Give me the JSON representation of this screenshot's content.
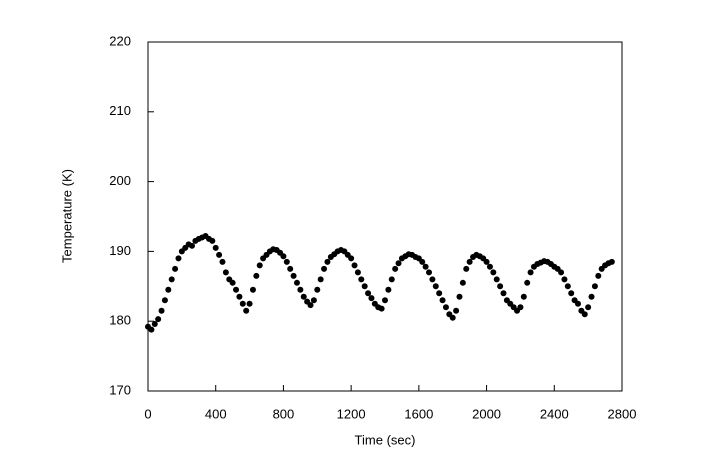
{
  "chart_data": {
    "type": "scatter",
    "x_label": "Time (sec)",
    "y_label": "Temperature (K)",
    "color": "#000000",
    "x": [
      0,
      20,
      40,
      60,
      80,
      100,
      120,
      140,
      160,
      180,
      200,
      220,
      240,
      260,
      280,
      300,
      320,
      340,
      360,
      380,
      400,
      420,
      440,
      460,
      480,
      500,
      520,
      540,
      560,
      580,
      600,
      620,
      640,
      660,
      680,
      700,
      720,
      740,
      760,
      780,
      800,
      820,
      840,
      860,
      880,
      900,
      920,
      940,
      960,
      980,
      1000,
      1020,
      1040,
      1060,
      1080,
      1100,
      1120,
      1140,
      1160,
      1180,
      1200,
      1220,
      1240,
      1260,
      1280,
      1300,
      1320,
      1340,
      1360,
      1380,
      1400,
      1420,
      1440,
      1460,
      1480,
      1500,
      1520,
      1540,
      1560,
      1580,
      1600,
      1620,
      1640,
      1660,
      1680,
      1700,
      1720,
      1740,
      1760,
      1780,
      1800,
      1820,
      1840,
      1860,
      1880,
      1900,
      1920,
      1940,
      1960,
      1980,
      2000,
      2020,
      2040,
      2060,
      2080,
      2100,
      2120,
      2140,
      2160,
      2180,
      2200,
      2220,
      2240,
      2260,
      2280,
      2300,
      2320,
      2340,
      2360,
      2380,
      2400,
      2420,
      2440,
      2460,
      2480,
      2500,
      2520,
      2540,
      2560,
      2580,
      2600,
      2620,
      2640,
      2660,
      2680,
      2700,
      2720,
      2740
    ],
    "values": [
      179.2,
      178.8,
      179.6,
      180.3,
      181.5,
      183,
      184.5,
      186,
      187.5,
      189,
      190,
      190.5,
      191,
      190.8,
      191.5,
      191.8,
      192,
      192.2,
      191.8,
      191.5,
      190.5,
      189.5,
      188.5,
      187,
      186,
      185.5,
      184.5,
      183.5,
      182.5,
      181.5,
      182.5,
      184.5,
      186.5,
      188,
      189,
      189.5,
      190,
      190.3,
      190.2,
      189.8,
      189.3,
      188.5,
      187.5,
      186.5,
      185.5,
      184.5,
      183.5,
      182.8,
      182.3,
      183,
      184.5,
      186,
      187.5,
      188.5,
      189.2,
      189.6,
      190,
      190.2,
      190,
      189.5,
      189,
      188,
      187,
      186,
      185,
      184,
      183.3,
      182.5,
      182,
      181.8,
      183,
      184.5,
      186,
      187.5,
      188.3,
      189,
      189.3,
      189.6,
      189.5,
      189.2,
      189,
      188.5,
      187.8,
      187,
      186,
      185,
      184,
      183,
      182,
      181,
      180.5,
      181.5,
      183.5,
      185.5,
      187.5,
      188.5,
      189.2,
      189.5,
      189.3,
      189,
      188.5,
      187.8,
      187,
      186,
      185,
      184,
      183,
      182.5,
      182,
      181.5,
      182,
      183.5,
      185.5,
      187,
      187.8,
      188.2,
      188.4,
      188.6,
      188.5,
      188.2,
      187.8,
      187.5,
      187,
      186,
      185,
      184,
      183,
      182.5,
      181.5,
      181,
      182,
      183.5,
      185,
      186.5,
      187.5,
      188,
      188.3,
      188.5
    ],
    "xlim": [
      0,
      2800
    ],
    "xticks": [
      0,
      400,
      800,
      1200,
      1600,
      2000,
      2400,
      2800
    ],
    "ylim": [
      170,
      220
    ],
    "yticks": [
      170,
      180,
      190,
      200,
      210,
      220
    ]
  }
}
